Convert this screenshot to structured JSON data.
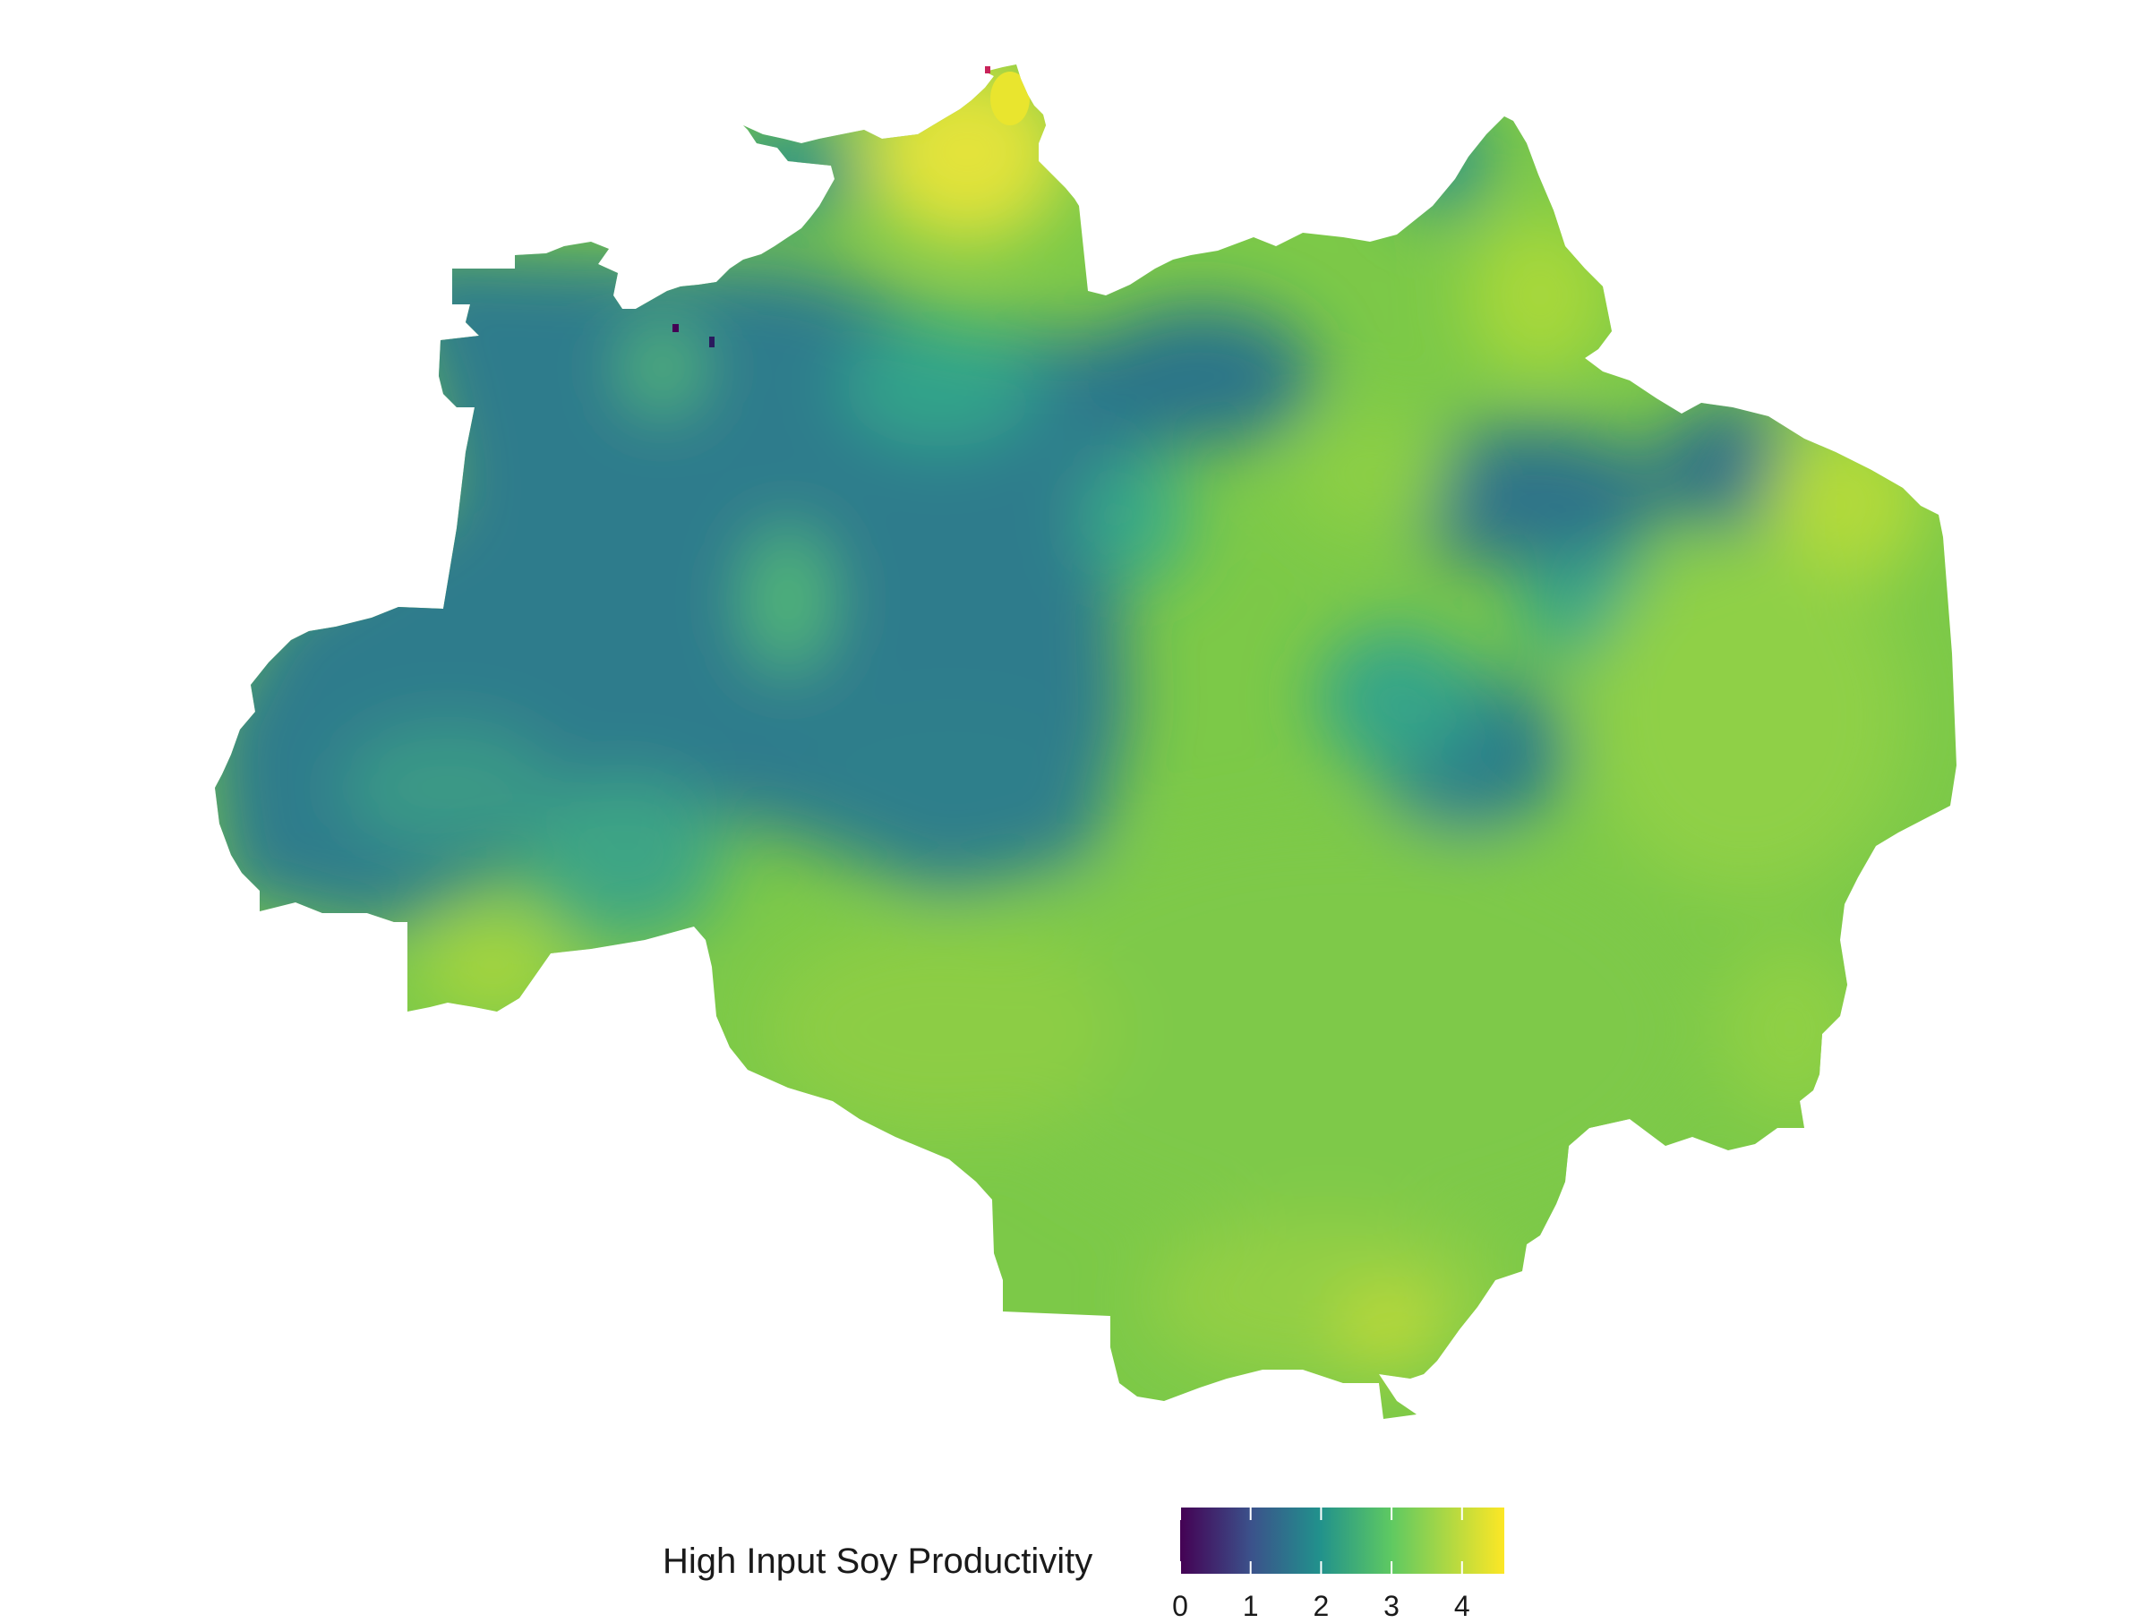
{
  "legend": {
    "title": "High Input Soy Productivity",
    "ticks": [
      "0",
      "1",
      "2",
      "3",
      "4"
    ],
    "tick_values": [
      0,
      1,
      2,
      3,
      4
    ],
    "range": [
      0,
      4.6
    ],
    "palette": "viridis",
    "colors": [
      "#440154",
      "#3b528b",
      "#21918c",
      "#5ec962",
      "#fde725"
    ]
  },
  "map": {
    "region": "Brazilian Legal Amazon",
    "colors": {
      "low_northwest": "#2d7b8c",
      "mid": "#2ea58a",
      "high_south": "#7cc948",
      "peak_north": "#e3e33a",
      "pixels_low": "#440154"
    }
  }
}
